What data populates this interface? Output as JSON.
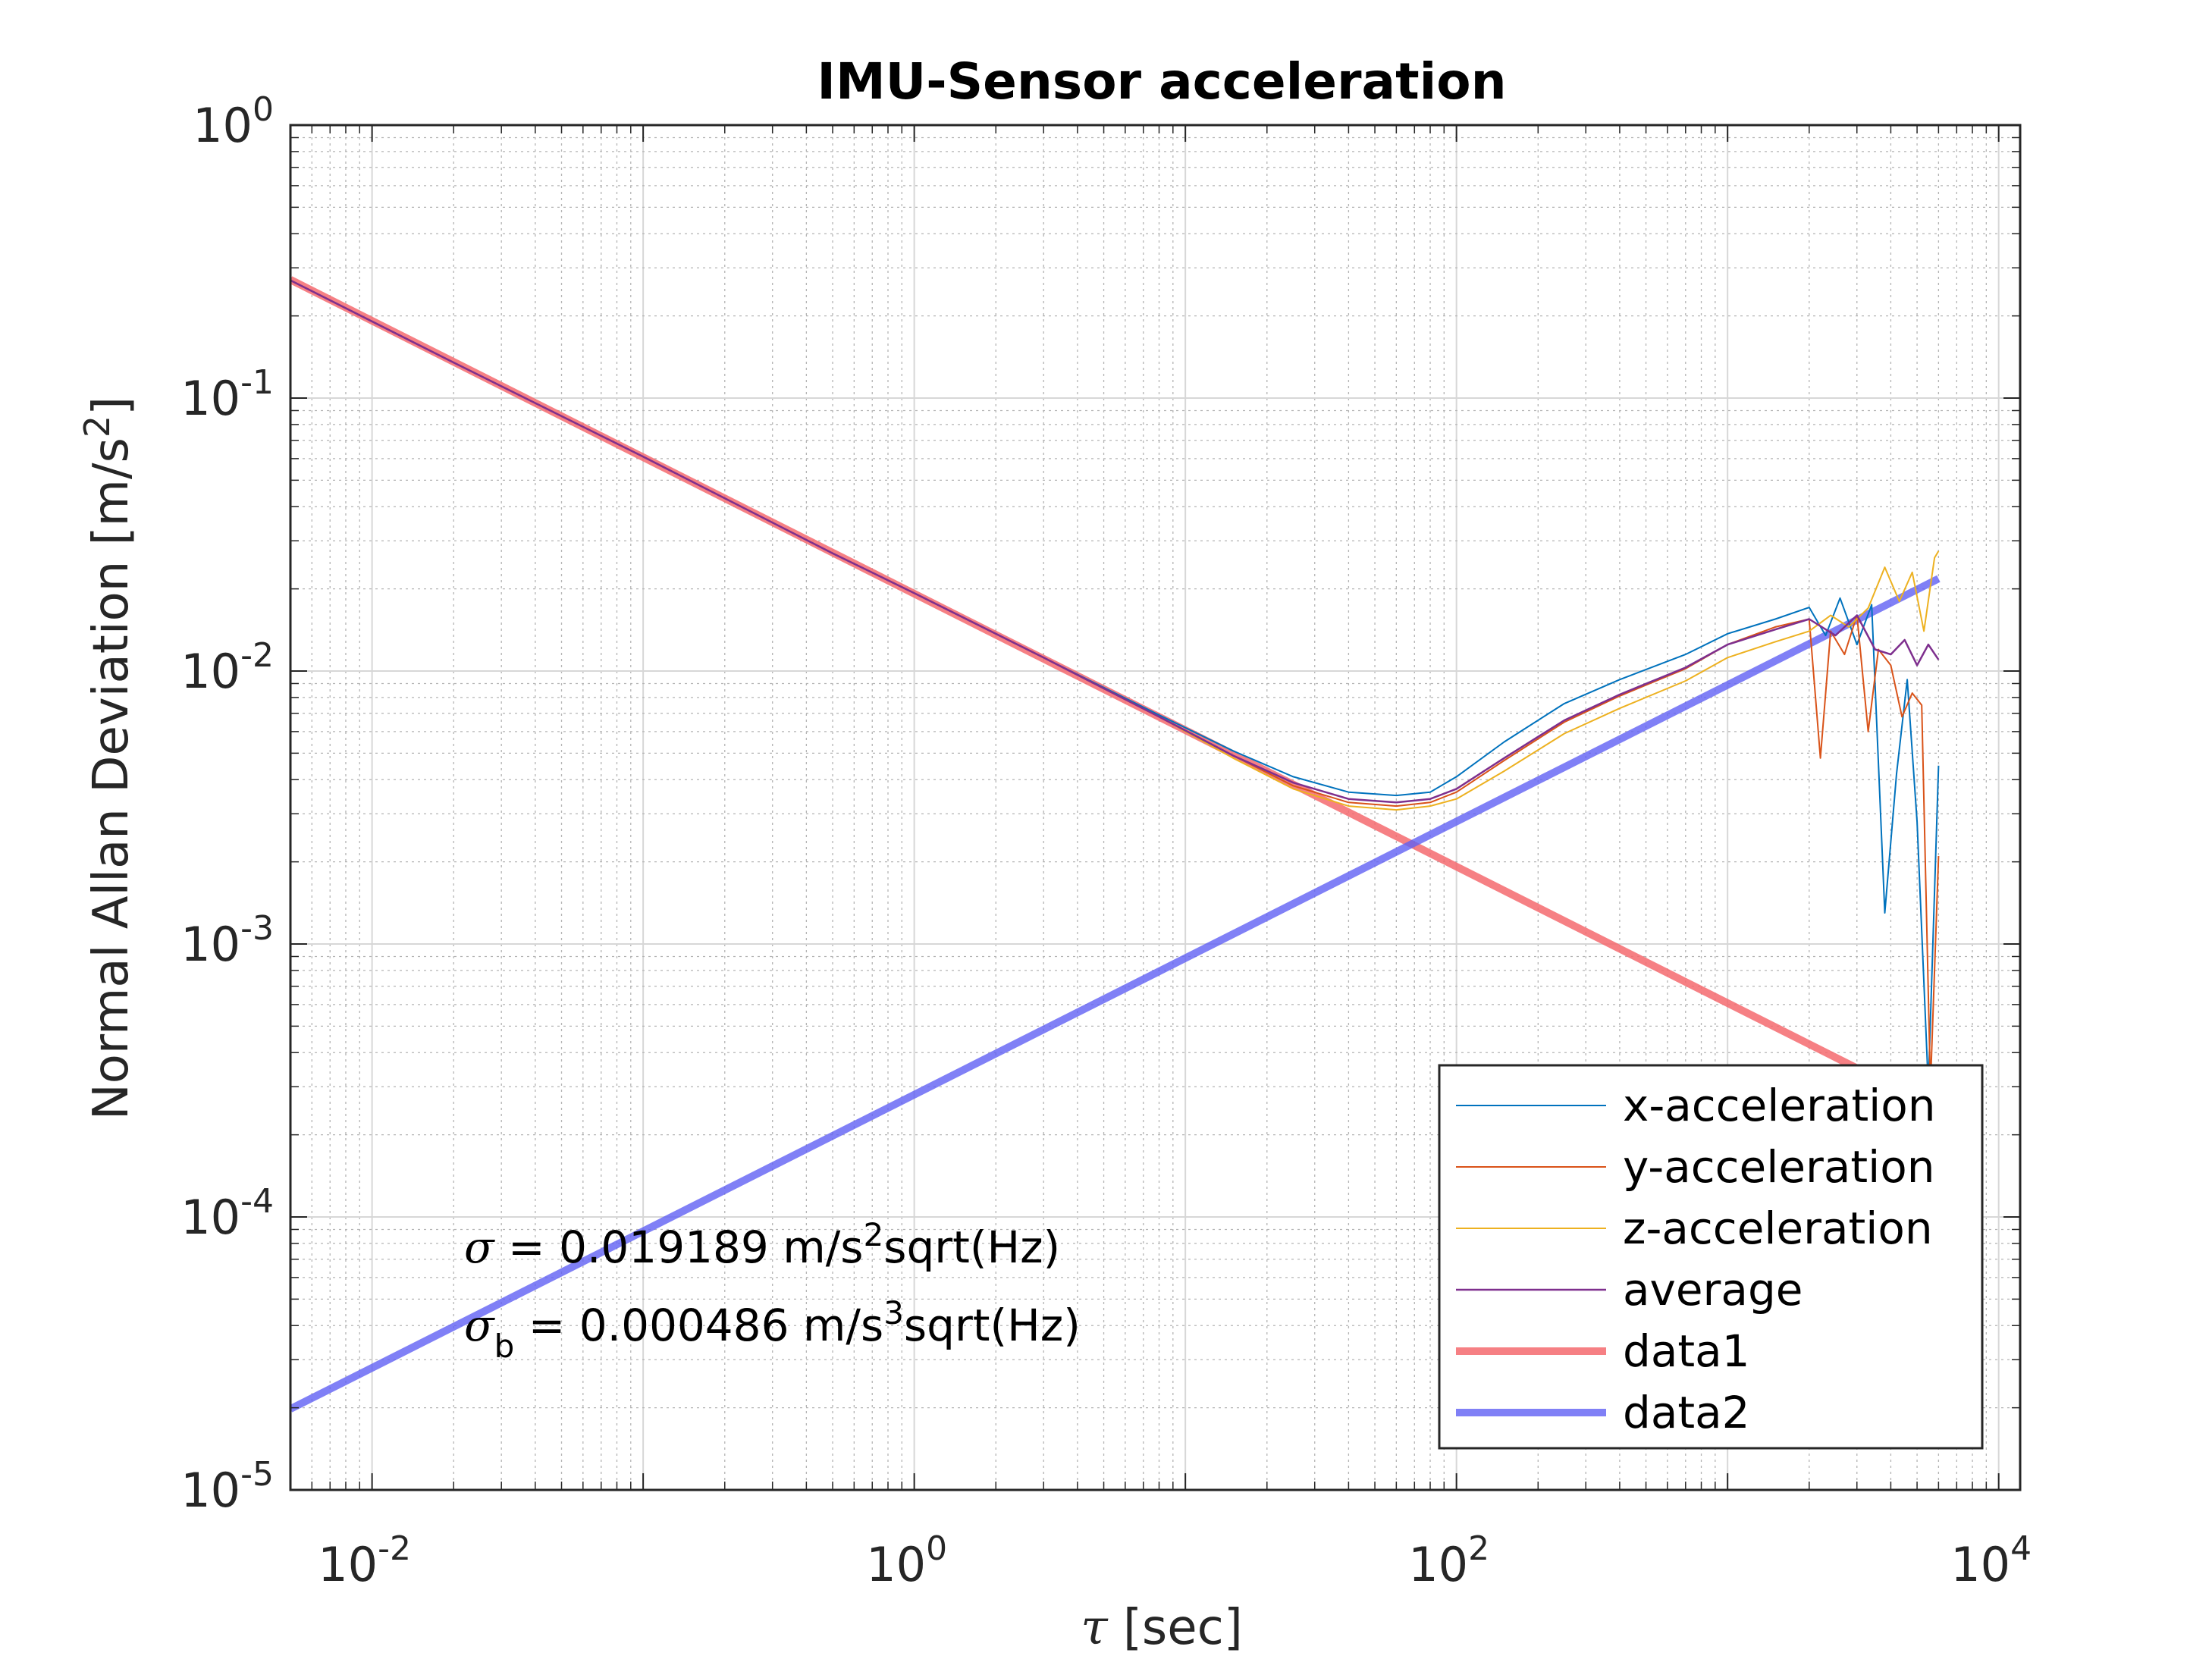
{
  "chart_data": {
    "type": "line",
    "title": "IMU-Sensor acceleration",
    "xlabel": {
      "symbol": "τ",
      "text": " [sec]"
    },
    "ylabel": {
      "base": "Normal Allan Deviation [m/s",
      "sup": "2",
      "close": "]"
    },
    "xscale": "log",
    "yscale": "log",
    "xlim": [
      0.005,
      12000
    ],
    "ylim": [
      1e-05,
      1
    ],
    "grid": true,
    "minor_grid": true,
    "xticks": [
      {
        "value": 0.01,
        "base": "10",
        "exp": "-2"
      },
      {
        "value": 1,
        "base": "10",
        "exp": "0"
      },
      {
        "value": 100,
        "base": "10",
        "exp": "2"
      },
      {
        "value": 10000,
        "base": "10",
        "exp": "4"
      }
    ],
    "yticks": [
      {
        "value": 1,
        "base": "10",
        "exp": "0"
      },
      {
        "value": 0.1,
        "base": "10",
        "exp": "-1"
      },
      {
        "value": 0.01,
        "base": "10",
        "exp": "-2"
      },
      {
        "value": 0.001,
        "base": "10",
        "exp": "-3"
      },
      {
        "value": 0.0001,
        "base": "10",
        "exp": "-4"
      },
      {
        "value": 1e-05,
        "base": "10",
        "exp": "-5"
      }
    ],
    "legend_position": "bottom-right",
    "series": [
      {
        "name": "x-acceleration",
        "color": "#0072BD",
        "width": 2,
        "opacity": 1,
        "x": [
          0.005,
          0.02,
          0.1,
          0.5,
          1,
          3,
          8,
          15,
          25,
          40,
          60,
          80,
          100,
          150,
          250,
          400,
          700,
          1000,
          1500,
          2000,
          2300,
          2600,
          3000,
          3400,
          3800,
          4200,
          4600,
          5000,
          5500,
          6000
        ],
        "y": [
          0.27,
          0.135,
          0.061,
          0.027,
          0.0193,
          0.0112,
          0.0069,
          0.0051,
          0.0041,
          0.0036,
          0.0035,
          0.0036,
          0.0041,
          0.0055,
          0.0076,
          0.0093,
          0.0115,
          0.0137,
          0.0155,
          0.0171,
          0.0135,
          0.0185,
          0.0125,
          0.0175,
          0.0013,
          0.0042,
          0.0093,
          0.0028,
          0.0003,
          0.0045
        ]
      },
      {
        "name": "y-acceleration",
        "color": "#D95319",
        "width": 2,
        "opacity": 1,
        "x": [
          0.005,
          0.02,
          0.1,
          0.5,
          1,
          3,
          8,
          15,
          25,
          40,
          60,
          80,
          100,
          150,
          250,
          400,
          700,
          1000,
          1500,
          2000,
          2200,
          2400,
          2700,
          3000,
          3300,
          3600,
          4000,
          4400,
          4800,
          5200,
          5600,
          6000
        ],
        "y": [
          0.27,
          0.135,
          0.061,
          0.027,
          0.0193,
          0.0112,
          0.0068,
          0.0049,
          0.0038,
          0.0033,
          0.0032,
          0.0033,
          0.0036,
          0.0047,
          0.0065,
          0.0081,
          0.0102,
          0.0125,
          0.0145,
          0.0155,
          0.0048,
          0.014,
          0.0115,
          0.016,
          0.006,
          0.012,
          0.0105,
          0.0068,
          0.0083,
          0.0075,
          0.0003,
          0.0021
        ]
      },
      {
        "name": "z-acceleration",
        "color": "#EDB120",
        "width": 2,
        "opacity": 1,
        "x": [
          0.005,
          0.02,
          0.1,
          0.5,
          1,
          3,
          8,
          15,
          25,
          40,
          60,
          80,
          100,
          150,
          250,
          400,
          700,
          1000,
          1500,
          2000,
          2400,
          2800,
          3300,
          3800,
          4300,
          4800,
          5300,
          5800,
          6000
        ],
        "y": [
          0.27,
          0.135,
          0.061,
          0.027,
          0.0193,
          0.0112,
          0.0068,
          0.0048,
          0.0037,
          0.0032,
          0.0031,
          0.0032,
          0.0034,
          0.0043,
          0.0059,
          0.0073,
          0.0092,
          0.0112,
          0.0128,
          0.014,
          0.016,
          0.0145,
          0.017,
          0.024,
          0.018,
          0.023,
          0.014,
          0.026,
          0.0275
        ]
      },
      {
        "name": "average",
        "color": "#7E2F8E",
        "width": 2.5,
        "opacity": 1,
        "x": [
          0.005,
          0.02,
          0.1,
          0.5,
          1,
          3,
          8,
          15,
          25,
          40,
          60,
          80,
          100,
          150,
          250,
          400,
          700,
          1000,
          1500,
          2000,
          2500,
          3000,
          3500,
          4000,
          4500,
          5000,
          5500,
          6000
        ],
        "y": [
          0.27,
          0.135,
          0.061,
          0.027,
          0.0193,
          0.0112,
          0.0068,
          0.0049,
          0.0039,
          0.0034,
          0.0033,
          0.0034,
          0.0037,
          0.0048,
          0.0066,
          0.0082,
          0.0103,
          0.0125,
          0.0142,
          0.0155,
          0.0135,
          0.016,
          0.012,
          0.0115,
          0.013,
          0.0105,
          0.0125,
          0.011
        ]
      },
      {
        "name": "data1",
        "color": "#F46A6E",
        "width": 10,
        "opacity": 0.85,
        "x": [
          0.005,
          6000
        ],
        "y": [
          0.2714,
          0.000248
        ]
      },
      {
        "name": "data2",
        "color": "#6060F4",
        "width": 10,
        "opacity": 0.8,
        "x": [
          0.005,
          6000
        ],
        "y": [
          1.98e-05,
          0.0218
        ]
      }
    ],
    "annotations": [
      {
        "symbol": "σ",
        "sub": "",
        "text_before_sup": " = 0.019189 m/s",
        "sup": "2",
        "text_after_sup": "sqrt(Hz)"
      },
      {
        "symbol": "σ",
        "sub": "b",
        "text_before_sup": " = 0.000486 m/s",
        "sup": "3",
        "text_after_sup": "sqrt(Hz)"
      }
    ]
  }
}
